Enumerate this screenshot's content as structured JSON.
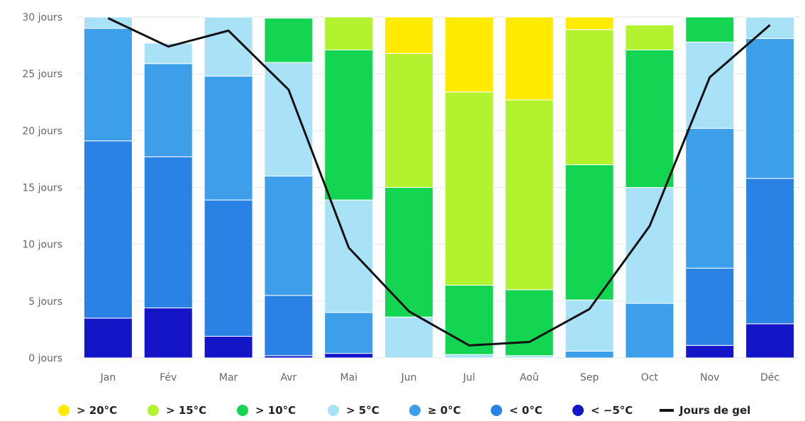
{
  "chart_data": {
    "type": "bar",
    "stacked": true,
    "categories": [
      "Jan",
      "Fév",
      "Mar",
      "Avr",
      "Mai",
      "Jun",
      "Jul",
      "Aoû",
      "Sep",
      "Oct",
      "Nov",
      "Déc"
    ],
    "y_ticks": [
      "0 jours",
      "5 jours",
      "10 jours",
      "15 jours",
      "20 jours",
      "25 jours",
      "30 jours"
    ],
    "ylim": [
      0,
      30
    ],
    "grid": true,
    "legend_position": "bottom",
    "series": [
      {
        "name": "< −5°C",
        "color": "#1515c8",
        "values": [
          3.5,
          4.4,
          1.9,
          0.2,
          0.4,
          0,
          0,
          0,
          0,
          0,
          1.1,
          3.0
        ]
      },
      {
        "name": "< 0°C",
        "color": "#2a82e4",
        "values": [
          15.6,
          13.3,
          12.0,
          5.3,
          0,
          0,
          0,
          0,
          0,
          0,
          6.8,
          12.8
        ]
      },
      {
        "name": "≥ 0°C",
        "color": "#3d9ee9",
        "values": [
          9.9,
          8.2,
          10.9,
          10.5,
          3.6,
          0,
          0,
          0,
          0.6,
          4.8,
          12.3,
          12.3
        ]
      },
      {
        "name": "> 5°C",
        "color": "#a9e1f6",
        "values": [
          1.0,
          1.8,
          5.2,
          10.0,
          9.9,
          3.6,
          0.3,
          0.2,
          4.5,
          10.2,
          7.6,
          1.9
        ]
      },
      {
        "name": "> 10°C",
        "color": "#14d552",
        "values": [
          0,
          0,
          0,
          3.9,
          13.2,
          11.4,
          6.1,
          5.8,
          11.9,
          12.1,
          2.2,
          0
        ]
      },
      {
        "name": "> 15°C",
        "color": "#b2f22f",
        "values": [
          0,
          0,
          0,
          0,
          2.9,
          11.8,
          17.0,
          16.7,
          11.9,
          2.2,
          0,
          0
        ]
      },
      {
        "name": "> 20°C",
        "color": "#ffea00",
        "values": [
          0,
          0,
          0,
          0,
          0,
          3.2,
          6.6,
          7.3,
          1.1,
          0,
          0,
          0
        ]
      }
    ],
    "line": {
      "name": "Jours de gel",
      "color": "#111111",
      "values": [
        29.9,
        27.4,
        28.8,
        23.6,
        9.7,
        4.1,
        1.1,
        1.4,
        4.3,
        11.6,
        24.7,
        29.3
      ]
    },
    "legend_entries": [
      {
        "label": "> 20°C",
        "color": "#ffea00"
      },
      {
        "label": "> 15°C",
        "color": "#b2f22f"
      },
      {
        "label": "> 10°C",
        "color": "#14d552"
      },
      {
        "label": "> 5°C",
        "color": "#a9e1f6"
      },
      {
        "label": "≥ 0°C",
        "color": "#3d9ee9"
      },
      {
        "label": "< 0°C",
        "color": "#2a82e4"
      },
      {
        "label": "< −5°C",
        "color": "#1515c8"
      },
      {
        "label": "Jours de gel",
        "color": "#111111"
      }
    ]
  }
}
